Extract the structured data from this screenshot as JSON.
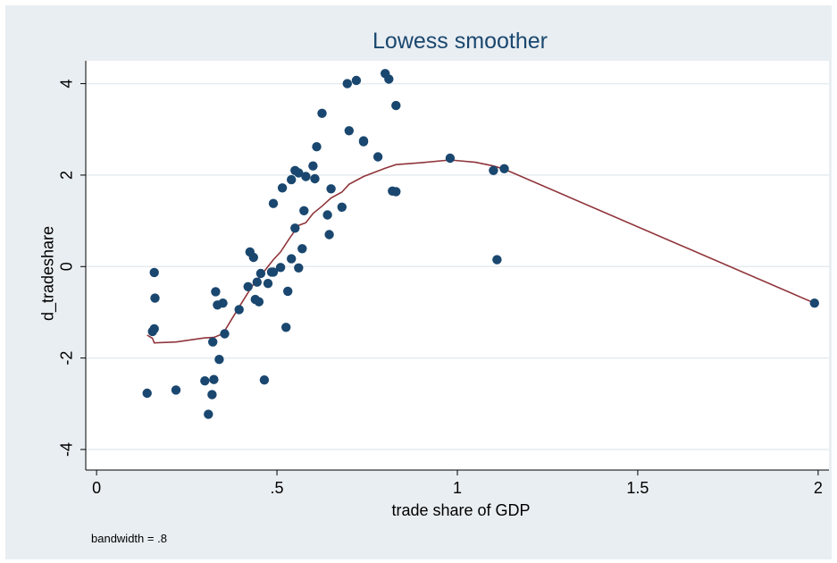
{
  "chart_data": {
    "type": "scatter",
    "title": "Lowess smoother",
    "xlabel": "trade share of GDP",
    "ylabel": "d_tradeshare",
    "note": "bandwidth = .8",
    "xlim": [
      -0.03,
      2.03
    ],
    "ylim": [
      -4.45,
      4.5
    ],
    "x_ticks": [
      0,
      0.5,
      1,
      1.5,
      2
    ],
    "x_tick_labels": [
      "0",
      ".5",
      "1",
      "1.5",
      "2"
    ],
    "y_ticks": [
      -4,
      -2,
      0,
      2,
      4
    ],
    "y_tick_labels": [
      "-4",
      "-2",
      "0",
      "2",
      "4"
    ],
    "grid": true,
    "point_color": "#1a476f",
    "line_color": "#90353b",
    "series": [
      {
        "type": "scatter",
        "points": [
          [
            0.14,
            -2.77
          ],
          [
            0.155,
            -1.42
          ],
          [
            0.16,
            -1.36
          ],
          [
            0.16,
            -0.13
          ],
          [
            0.162,
            -0.69
          ],
          [
            0.22,
            -2.7
          ],
          [
            0.3,
            -2.5
          ],
          [
            0.31,
            -3.23
          ],
          [
            0.32,
            -2.8
          ],
          [
            0.322,
            -1.65
          ],
          [
            0.325,
            -2.47
          ],
          [
            0.33,
            -0.55
          ],
          [
            0.335,
            -0.84
          ],
          [
            0.34,
            -2.03
          ],
          [
            0.35,
            -0.8
          ],
          [
            0.355,
            -1.47
          ],
          [
            0.395,
            -0.94
          ],
          [
            0.42,
            -0.44
          ],
          [
            0.425,
            0.32
          ],
          [
            0.435,
            0.2
          ],
          [
            0.44,
            -0.72
          ],
          [
            0.445,
            -0.34
          ],
          [
            0.45,
            -0.77
          ],
          [
            0.455,
            -0.15
          ],
          [
            0.465,
            -2.48
          ],
          [
            0.475,
            -0.37
          ],
          [
            0.485,
            -0.12
          ],
          [
            0.49,
            1.38
          ],
          [
            0.49,
            -0.12
          ],
          [
            0.51,
            -0.02
          ],
          [
            0.515,
            1.72
          ],
          [
            0.525,
            -1.33
          ],
          [
            0.53,
            -0.54
          ],
          [
            0.54,
            0.17
          ],
          [
            0.54,
            1.9
          ],
          [
            0.55,
            2.1
          ],
          [
            0.55,
            0.84
          ],
          [
            0.56,
            -0.03
          ],
          [
            0.56,
            2.05
          ],
          [
            0.57,
            0.39
          ],
          [
            0.575,
            1.22
          ],
          [
            0.58,
            1.97
          ],
          [
            0.6,
            2.2
          ],
          [
            0.605,
            1.92
          ],
          [
            0.61,
            2.62
          ],
          [
            0.625,
            3.35
          ],
          [
            0.64,
            1.13
          ],
          [
            0.645,
            0.7
          ],
          [
            0.65,
            1.7
          ],
          [
            0.68,
            1.3
          ],
          [
            0.695,
            4.0
          ],
          [
            0.7,
            2.97
          ],
          [
            0.72,
            4.07
          ],
          [
            0.74,
            2.75
          ],
          [
            0.74,
            2.73
          ],
          [
            0.78,
            2.4
          ],
          [
            0.8,
            4.22
          ],
          [
            0.81,
            4.1
          ],
          [
            0.82,
            1.65
          ],
          [
            0.83,
            3.52
          ],
          [
            0.83,
            1.64
          ],
          [
            0.98,
            2.37
          ],
          [
            1.1,
            2.1
          ],
          [
            1.11,
            0.15
          ],
          [
            1.13,
            2.14
          ],
          [
            1.99,
            -0.8
          ]
        ]
      },
      {
        "type": "line",
        "points": [
          [
            0.14,
            -1.5
          ],
          [
            0.155,
            -1.57
          ],
          [
            0.16,
            -1.67
          ],
          [
            0.22,
            -1.65
          ],
          [
            0.3,
            -1.56
          ],
          [
            0.325,
            -1.55
          ],
          [
            0.35,
            -1.47
          ],
          [
            0.39,
            -0.95
          ],
          [
            0.43,
            -0.44
          ],
          [
            0.46,
            -0.15
          ],
          [
            0.49,
            0.15
          ],
          [
            0.51,
            0.32
          ],
          [
            0.535,
            0.62
          ],
          [
            0.56,
            0.9
          ],
          [
            0.58,
            0.96
          ],
          [
            0.6,
            1.16
          ],
          [
            0.625,
            1.32
          ],
          [
            0.65,
            1.5
          ],
          [
            0.68,
            1.63
          ],
          [
            0.7,
            1.8
          ],
          [
            0.74,
            1.97
          ],
          [
            0.8,
            2.15
          ],
          [
            0.83,
            2.23
          ],
          [
            0.9,
            2.27
          ],
          [
            0.98,
            2.33
          ],
          [
            1.05,
            2.28
          ],
          [
            1.1,
            2.2
          ],
          [
            1.13,
            2.13
          ],
          [
            1.99,
            -0.8
          ]
        ]
      }
    ]
  }
}
